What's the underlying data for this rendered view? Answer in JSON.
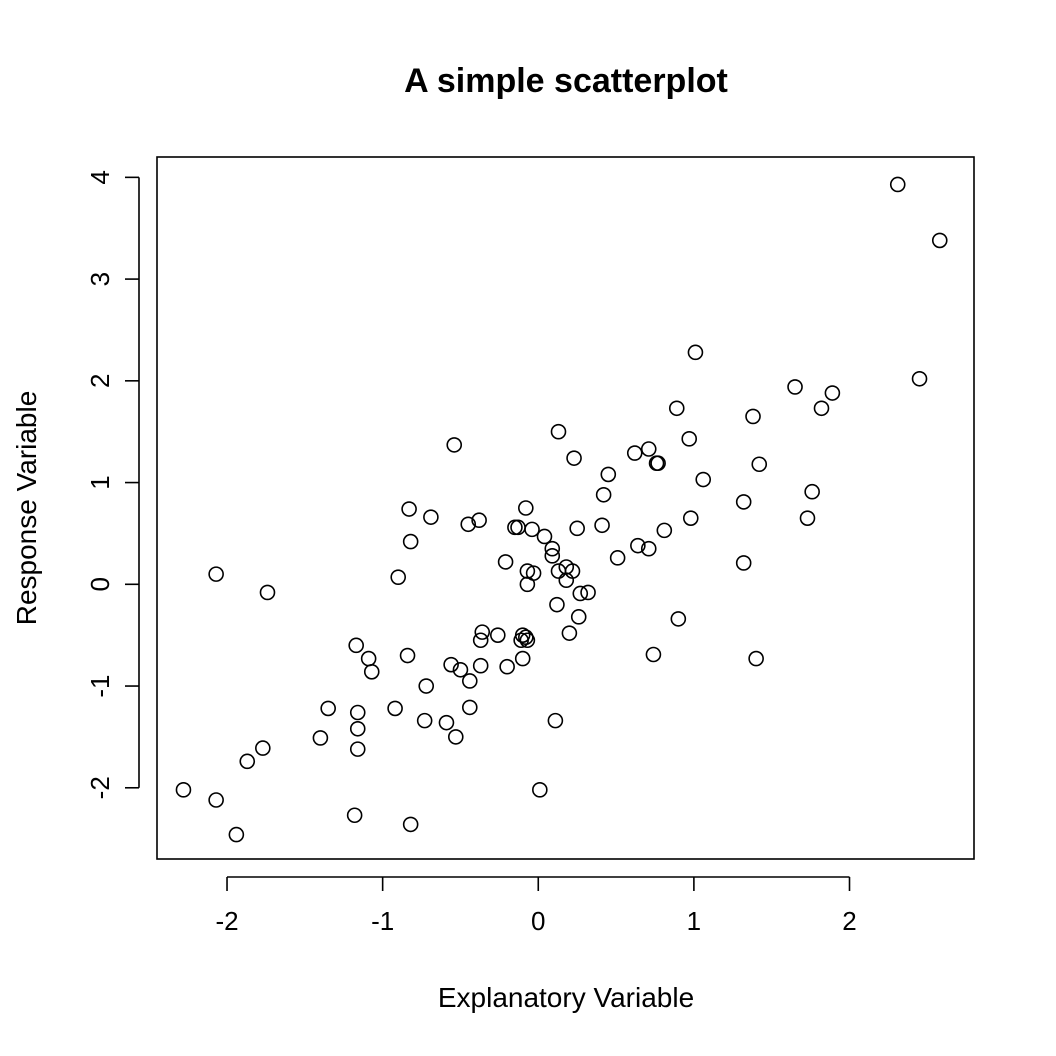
{
  "chart_data": {
    "type": "scatter",
    "title": "A simple scatterplot",
    "xlabel": "Explanatory Variable",
    "ylabel": "Response Variable",
    "xlim": [
      -2.45,
      2.8
    ],
    "ylim": [
      -2.7,
      4.2
    ],
    "x_ticks": [
      -2,
      -1,
      0,
      1,
      2
    ],
    "y_ticks": [
      -2,
      -1,
      0,
      1,
      2,
      3,
      4
    ],
    "x_tick_labels": [
      "-2",
      "-1",
      "0",
      "1",
      "2"
    ],
    "y_tick_labels": [
      "-2",
      "-1",
      "0",
      "1",
      "2",
      "3",
      "4"
    ],
    "grid": false,
    "legend": false,
    "marker": "open-circle",
    "points": [
      [
        2.31,
        3.93
      ],
      [
        2.58,
        3.38
      ],
      [
        1.01,
        2.28
      ],
      [
        2.45,
        2.02
      ],
      [
        1.65,
        1.94
      ],
      [
        1.89,
        1.88
      ],
      [
        1.82,
        1.73
      ],
      [
        0.89,
        1.73
      ],
      [
        1.38,
        1.65
      ],
      [
        0.13,
        1.5
      ],
      [
        -0.54,
        1.37
      ],
      [
        0.97,
        1.43
      ],
      [
        0.71,
        1.33
      ],
      [
        0.62,
        1.29
      ],
      [
        0.23,
        1.24
      ],
      [
        0.76,
        1.19
      ],
      [
        0.77,
        1.19
      ],
      [
        1.42,
        1.18
      ],
      [
        0.45,
        1.08
      ],
      [
        1.06,
        1.03
      ],
      [
        1.76,
        0.91
      ],
      [
        0.42,
        0.88
      ],
      [
        1.32,
        0.81
      ],
      [
        -0.83,
        0.74
      ],
      [
        -0.08,
        0.75
      ],
      [
        -0.69,
        0.66
      ],
      [
        0.98,
        0.65
      ],
      [
        1.73,
        0.65
      ],
      [
        -0.38,
        0.63
      ],
      [
        -0.45,
        0.59
      ],
      [
        0.41,
        0.58
      ],
      [
        -0.15,
        0.56
      ],
      [
        -0.13,
        0.56
      ],
      [
        0.25,
        0.55
      ],
      [
        -0.04,
        0.54
      ],
      [
        0.81,
        0.53
      ],
      [
        0.04,
        0.47
      ],
      [
        -0.82,
        0.42
      ],
      [
        0.64,
        0.38
      ],
      [
        0.71,
        0.35
      ],
      [
        0.09,
        0.35
      ],
      [
        0.09,
        0.28
      ],
      [
        0.51,
        0.26
      ],
      [
        -0.21,
        0.22
      ],
      [
        1.32,
        0.21
      ],
      [
        0.18,
        0.17
      ],
      [
        0.22,
        0.13
      ],
      [
        -0.07,
        0.13
      ],
      [
        0.13,
        0.13
      ],
      [
        -0.03,
        0.11
      ],
      [
        -2.07,
        0.1
      ],
      [
        -0.9,
        0.07
      ],
      [
        0.18,
        0.04
      ],
      [
        -0.07,
        0.0
      ],
      [
        -1.74,
        -0.08
      ],
      [
        0.32,
        -0.08
      ],
      [
        0.27,
        -0.09
      ],
      [
        0.12,
        -0.2
      ],
      [
        0.26,
        -0.32
      ],
      [
        0.9,
        -0.34
      ],
      [
        -0.36,
        -0.47
      ],
      [
        0.2,
        -0.48
      ],
      [
        -0.26,
        -0.5
      ],
      [
        -0.1,
        -0.5
      ],
      [
        -0.08,
        -0.52
      ],
      [
        -0.37,
        -0.55
      ],
      [
        -0.11,
        -0.55
      ],
      [
        -0.07,
        -0.55
      ],
      [
        -1.17,
        -0.6
      ],
      [
        0.74,
        -0.69
      ],
      [
        -0.84,
        -0.7
      ],
      [
        1.4,
        -0.73
      ],
      [
        -1.09,
        -0.73
      ],
      [
        -0.1,
        -0.73
      ],
      [
        -0.56,
        -0.79
      ],
      [
        -0.37,
        -0.8
      ],
      [
        -0.2,
        -0.81
      ],
      [
        -0.5,
        -0.84
      ],
      [
        -1.07,
        -0.86
      ],
      [
        -0.44,
        -0.95
      ],
      [
        -0.72,
        -1.0
      ],
      [
        -1.35,
        -1.22
      ],
      [
        -0.92,
        -1.22
      ],
      [
        -0.44,
        -1.21
      ],
      [
        -1.16,
        -1.26
      ],
      [
        0.11,
        -1.34
      ],
      [
        -0.73,
        -1.34
      ],
      [
        -0.59,
        -1.36
      ],
      [
        -1.16,
        -1.42
      ],
      [
        -1.4,
        -1.51
      ],
      [
        -0.53,
        -1.5
      ],
      [
        -1.77,
        -1.61
      ],
      [
        -1.16,
        -1.62
      ],
      [
        -1.87,
        -1.74
      ],
      [
        -2.28,
        -2.02
      ],
      [
        0.01,
        -2.02
      ],
      [
        -2.07,
        -2.12
      ],
      [
        -1.18,
        -2.27
      ],
      [
        -0.82,
        -2.36
      ],
      [
        -1.94,
        -2.46
      ]
    ]
  }
}
